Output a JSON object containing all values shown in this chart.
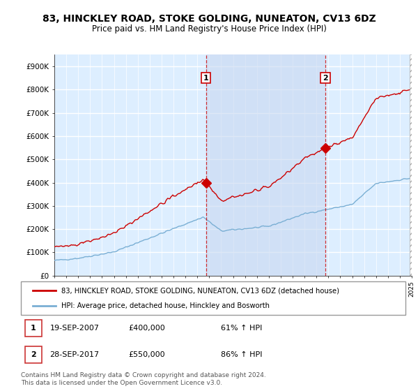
{
  "title": "83, HINCKLEY ROAD, STOKE GOLDING, NUNEATON, CV13 6DZ",
  "subtitle": "Price paid vs. HM Land Registry's House Price Index (HPI)",
  "ylabel_ticks": [
    "£0",
    "£100K",
    "£200K",
    "£300K",
    "£400K",
    "£500K",
    "£600K",
    "£700K",
    "£800K",
    "£900K"
  ],
  "ytick_values": [
    0,
    100000,
    200000,
    300000,
    400000,
    500000,
    600000,
    700000,
    800000,
    900000
  ],
  "ylim": [
    0,
    950000
  ],
  "red_line_color": "#cc0000",
  "blue_line_color": "#7aafd4",
  "background_color": "#ddeeff",
  "grid_color": "#ffffff",
  "vline_color": "#cc0000",
  "shade_color": "#c8d8f0",
  "sale1_date": 2007.72,
  "sale1_price": 400000,
  "sale2_date": 2017.74,
  "sale2_price": 550000,
  "legend_label_red": "83, HINCKLEY ROAD, STOKE GOLDING, NUNEATON, CV13 6DZ (detached house)",
  "legend_label_blue": "HPI: Average price, detached house, Hinckley and Bosworth",
  "note1_num": "1",
  "note1_date": "19-SEP-2007",
  "note1_price": "£400,000",
  "note1_hpi": "61% ↑ HPI",
  "note2_num": "2",
  "note2_date": "28-SEP-2017",
  "note2_price": "£550,000",
  "note2_hpi": "86% ↑ HPI",
  "footer": "Contains HM Land Registry data © Crown copyright and database right 2024.\nThis data is licensed under the Open Government Licence v3.0.",
  "xmin": 1995,
  "xmax": 2025
}
